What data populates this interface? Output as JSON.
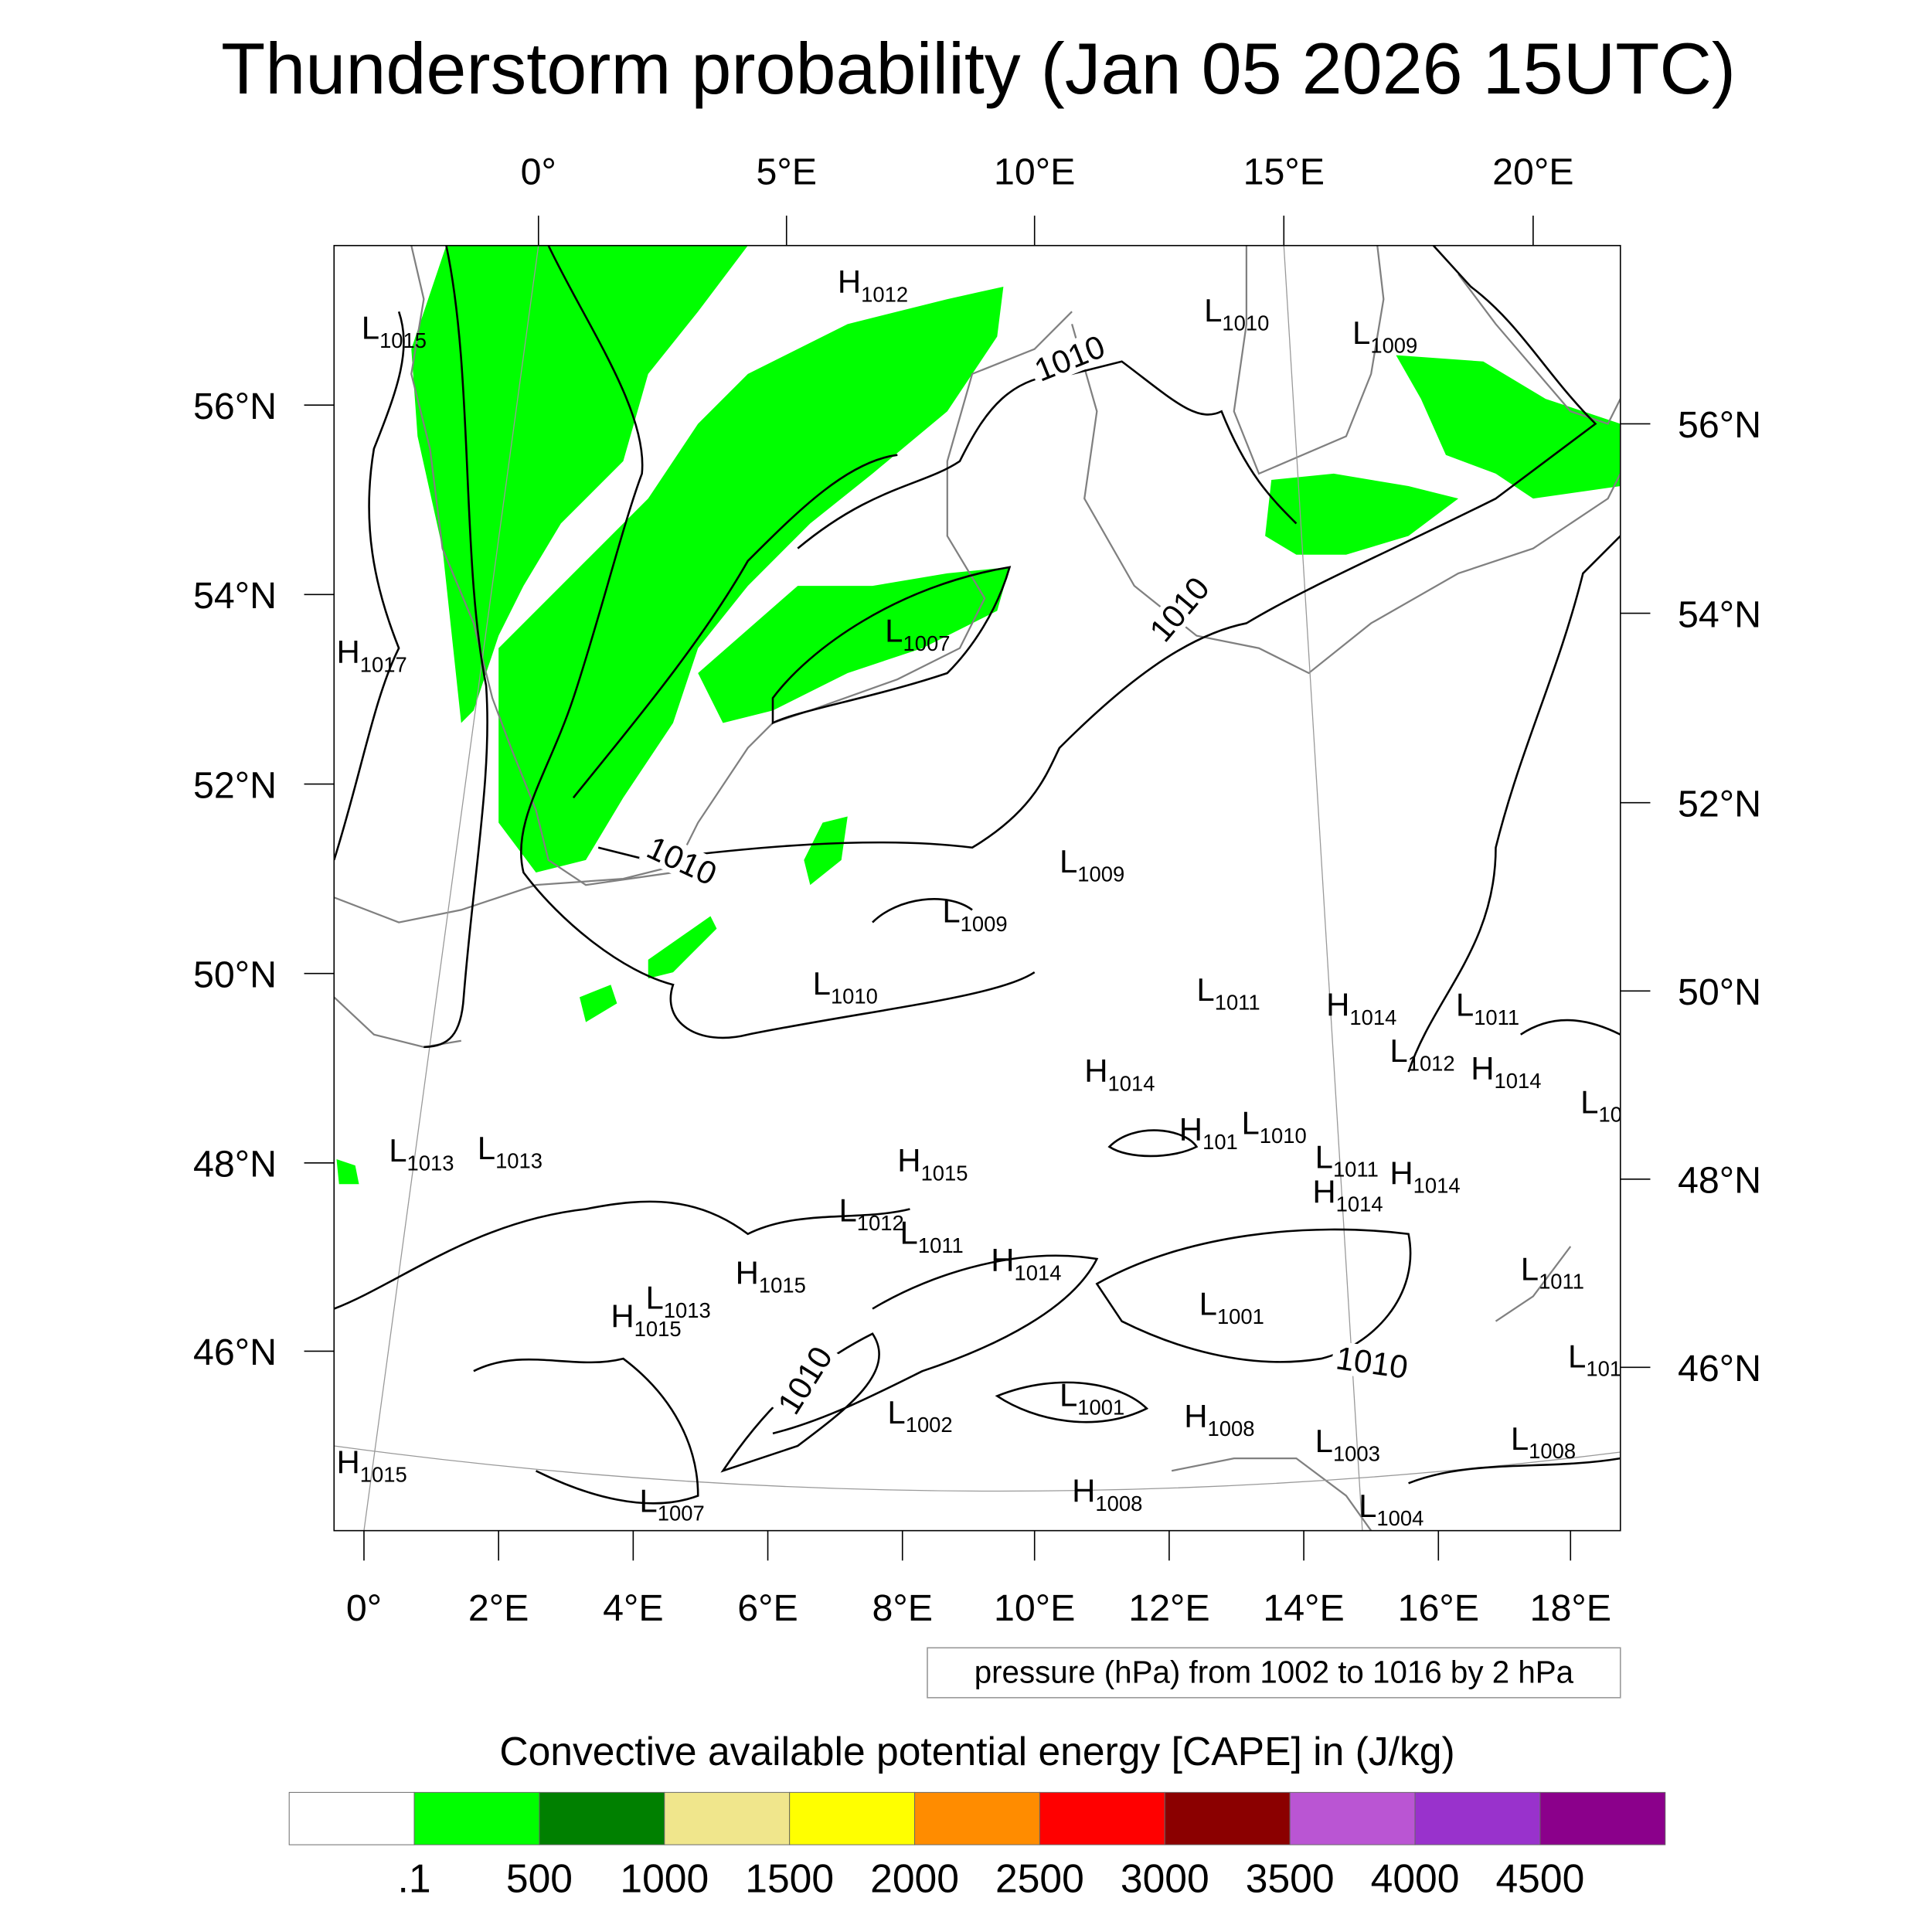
{
  "chart_data": {
    "type": "heatmap",
    "title": "Thunderstorm probability (Jan 05 2026 15UTC)",
    "top_lon_ticks": [
      "0°",
      "5°E",
      "10°E",
      "15°E",
      "20°E"
    ],
    "bottom_lon_ticks": [
      "0°",
      "2°E",
      "4°E",
      "6°E",
      "8°E",
      "10°E",
      "12°E",
      "14°E",
      "16°E",
      "18°E"
    ],
    "left_lat_ticks": [
      "56°N",
      "54°N",
      "52°N",
      "50°N",
      "48°N",
      "46°N"
    ],
    "right_lat_ticks": [
      "56°N",
      "54°N",
      "52°N",
      "50°N",
      "48°N",
      "46°N"
    ],
    "contour_info": "pressure (hPa) from 1002 to 1016 by 2 hPa",
    "contour_labels": [
      "1010",
      "1010",
      "1010",
      "1010",
      "1010"
    ],
    "pressure_centers": [
      {
        "t": "L",
        "v": "1015"
      },
      {
        "t": "H",
        "v": "1012"
      },
      {
        "t": "L",
        "v": "1010"
      },
      {
        "t": "L",
        "v": "1009"
      },
      {
        "t": "H",
        "v": "1017"
      },
      {
        "t": "L",
        "v": "1007"
      },
      {
        "t": "L",
        "v": "1009"
      },
      {
        "t": "L",
        "v": "1009"
      },
      {
        "t": "L",
        "v": "1010"
      },
      {
        "t": "L",
        "v": "1011"
      },
      {
        "t": "H",
        "v": "1014"
      },
      {
        "t": "L",
        "v": "1011"
      },
      {
        "t": "L",
        "v": "1012"
      },
      {
        "t": "H",
        "v": "1014"
      },
      {
        "t": "L",
        "v": "10"
      },
      {
        "t": "H",
        "v": "1014"
      },
      {
        "t": "H",
        "v": "101"
      },
      {
        "t": "L",
        "v": "1010"
      },
      {
        "t": "L",
        "v": "1011"
      },
      {
        "t": "H",
        "v": "1014"
      },
      {
        "t": "H",
        "v": "1014"
      },
      {
        "t": "L",
        "v": "1013"
      },
      {
        "t": "L",
        "v": "1013"
      },
      {
        "t": "H",
        "v": "1015"
      },
      {
        "t": "L",
        "v": "1012"
      },
      {
        "t": "L",
        "v": "1011"
      },
      {
        "t": "H",
        "v": "1014"
      },
      {
        "t": "H",
        "v": "1015"
      },
      {
        "t": "L",
        "v": "1013"
      },
      {
        "t": "H",
        "v": "1015"
      },
      {
        "t": "L",
        "v": "1001"
      },
      {
        "t": "L",
        "v": "1011"
      },
      {
        "t": "L",
        "v": "101"
      },
      {
        "t": "L",
        "v": "1001"
      },
      {
        "t": "L",
        "v": "1002"
      },
      {
        "t": "H",
        "v": "1008"
      },
      {
        "t": "L",
        "v": "1003"
      },
      {
        "t": "L",
        "v": "1008"
      },
      {
        "t": "H",
        "v": "1015"
      },
      {
        "t": "L",
        "v": "1007"
      },
      {
        "t": "H",
        "v": "1008"
      },
      {
        "t": "L",
        "v": "1004"
      }
    ],
    "colorbar": {
      "title": "Convective available potential energy [CAPE] in (J/kg)",
      "levels": [
        ".1",
        "500",
        "1000",
        "1500",
        "2000",
        "2500",
        "3000",
        "3500",
        "4000",
        "4500"
      ],
      "colors": [
        "#ffffff",
        "#00ff00",
        "#008000",
        "#f0e68c",
        "#ffff00",
        "#ff8c00",
        "#ff0000",
        "#8b0000",
        "#ba55d3",
        "#9932cc",
        "#8b008b"
      ]
    },
    "cape_present_range": [
      0.1,
      500
    ]
  }
}
